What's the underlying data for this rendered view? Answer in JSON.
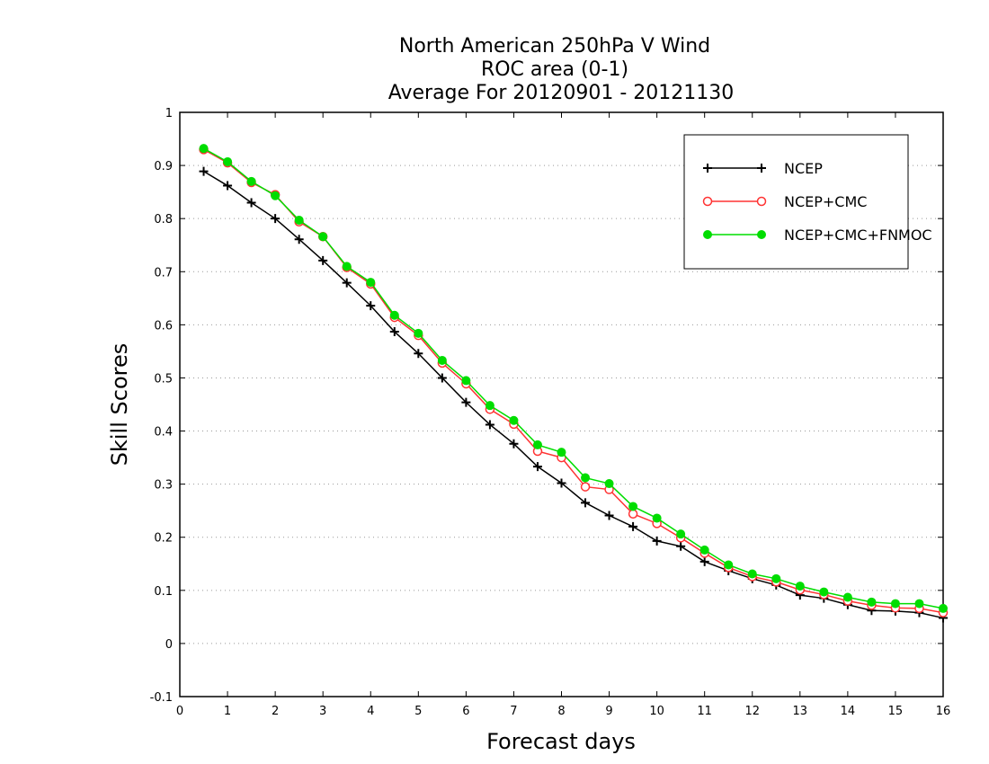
{
  "chart_data": {
    "type": "line",
    "title_lines": [
      "North American 250hPa V Wind",
      "ROC area (0-1)",
      "Average For 20120901 - 20121130"
    ],
    "xlabel": "Forecast days",
    "ylabel": "Skill Scores",
    "xlim": [
      0,
      16
    ],
    "ylim": [
      -0.1,
      1
    ],
    "xticks": [
      "0",
      "1",
      "2",
      "3",
      "4",
      "5",
      "6",
      "7",
      "8",
      "9",
      "10",
      "11",
      "12",
      "13",
      "14",
      "15",
      "16"
    ],
    "yticks": [
      "-0.1",
      "0",
      "0.1",
      "0.2",
      "0.3",
      "0.4",
      "0.5",
      "0.6",
      "0.7",
      "0.8",
      "0.9",
      "1"
    ],
    "grid": "horizontal dotted",
    "legend_position": "top-right",
    "x": [
      0.5,
      1,
      1.5,
      2,
      2.5,
      3,
      3.5,
      4,
      4.5,
      5,
      5.5,
      6,
      6.5,
      7,
      7.5,
      8,
      8.5,
      9,
      9.5,
      10,
      10.5,
      11,
      11.5,
      12,
      12.5,
      13,
      13.5,
      14,
      14.5,
      15,
      15.5,
      16
    ],
    "series": [
      {
        "name": "NCEP",
        "color": "#000000",
        "marker": "plus",
        "values": [
          0.889,
          0.862,
          0.83,
          0.8,
          0.761,
          0.721,
          0.679,
          0.636,
          0.587,
          0.546,
          0.5,
          0.454,
          0.412,
          0.376,
          0.333,
          0.302,
          0.265,
          0.241,
          0.22,
          0.193,
          0.183,
          0.154,
          0.137,
          0.122,
          0.11,
          0.091,
          0.085,
          0.073,
          0.062,
          0.061,
          0.058,
          0.048
        ]
      },
      {
        "name": "NCEP+CMC",
        "color": "#ff3333",
        "marker": "open-circle",
        "values": [
          0.93,
          0.905,
          0.868,
          0.845,
          0.794,
          0.766,
          0.708,
          0.677,
          0.614,
          0.58,
          0.528,
          0.489,
          0.441,
          0.413,
          0.362,
          0.35,
          0.295,
          0.29,
          0.244,
          0.226,
          0.199,
          0.17,
          0.143,
          0.126,
          0.116,
          0.101,
          0.092,
          0.08,
          0.072,
          0.067,
          0.066,
          0.058
        ]
      },
      {
        "name": "NCEP+CMC+FNMOC",
        "color": "#00dd00",
        "marker": "filled-circle",
        "values": [
          0.932,
          0.907,
          0.87,
          0.843,
          0.797,
          0.766,
          0.71,
          0.68,
          0.618,
          0.584,
          0.533,
          0.495,
          0.448,
          0.42,
          0.374,
          0.36,
          0.312,
          0.301,
          0.258,
          0.236,
          0.206,
          0.176,
          0.148,
          0.131,
          0.122,
          0.108,
          0.097,
          0.087,
          0.078,
          0.075,
          0.075,
          0.066
        ]
      }
    ]
  }
}
